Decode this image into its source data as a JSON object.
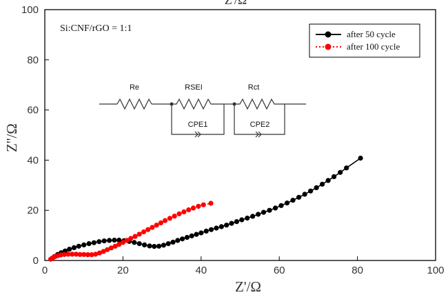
{
  "chart_data": {
    "type": "scatter",
    "top_title_fragment": "Z'/Ω",
    "xlabel": "Z'/Ω",
    "ylabel": "Z''/Ω",
    "xlim": [
      0,
      100
    ],
    "ylim": [
      0,
      100
    ],
    "x_ticks": [
      "0",
      "20",
      "40",
      "60",
      "80",
      "100"
    ],
    "y_ticks": [
      "0",
      "20",
      "40",
      "60",
      "80",
      "100"
    ],
    "grid": false,
    "legend_position": "top-right",
    "annotation": "Si:CNF/rGO = 1:1",
    "circuit": {
      "resistors": [
        "Re",
        "RSEI",
        "Rct"
      ],
      "cpes": [
        "CPE1",
        "CPE2"
      ]
    },
    "series": [
      {
        "name": "after 50 cycle",
        "color": "#000000",
        "line_style": "solid",
        "points": [
          [
            1.8,
            0.8
          ],
          [
            2.5,
            1.6
          ],
          [
            3.3,
            2.4
          ],
          [
            4.2,
            3.1
          ],
          [
            5.2,
            3.8
          ],
          [
            6.3,
            4.5
          ],
          [
            7.5,
            5.1
          ],
          [
            8.7,
            5.7
          ],
          [
            10.0,
            6.2
          ],
          [
            11.3,
            6.7
          ],
          [
            12.6,
            7.1
          ],
          [
            13.9,
            7.5
          ],
          [
            15.2,
            7.8
          ],
          [
            16.5,
            8.0
          ],
          [
            17.8,
            8.1
          ],
          [
            19.0,
            8.1
          ],
          [
            20.3,
            7.9
          ],
          [
            21.6,
            7.6
          ],
          [
            22.9,
            7.2
          ],
          [
            24.2,
            6.7
          ],
          [
            25.5,
            6.2
          ],
          [
            26.8,
            5.8
          ],
          [
            28.0,
            5.6
          ],
          [
            29.2,
            5.7
          ],
          [
            30.4,
            6.1
          ],
          [
            31.6,
            6.7
          ],
          [
            32.8,
            7.3
          ],
          [
            34.0,
            8.0
          ],
          [
            35.2,
            8.6
          ],
          [
            36.4,
            9.2
          ],
          [
            37.6,
            9.8
          ],
          [
            38.8,
            10.4
          ],
          [
            40.0,
            11.0
          ],
          [
            41.3,
            11.7
          ],
          [
            42.6,
            12.3
          ],
          [
            43.9,
            12.9
          ],
          [
            45.2,
            13.5
          ],
          [
            46.5,
            14.1
          ],
          [
            47.8,
            14.8
          ],
          [
            49.1,
            15.5
          ],
          [
            50.4,
            16.2
          ],
          [
            51.8,
            16.9
          ],
          [
            53.2,
            17.6
          ],
          [
            54.6,
            18.4
          ],
          [
            56.0,
            19.2
          ],
          [
            57.5,
            20.0
          ],
          [
            59.0,
            20.9
          ],
          [
            60.5,
            21.9
          ],
          [
            62.0,
            22.9
          ],
          [
            63.5,
            24.0
          ],
          [
            65.0,
            25.2
          ],
          [
            66.5,
            26.4
          ],
          [
            68.0,
            27.7
          ],
          [
            69.5,
            29.0
          ],
          [
            71.0,
            30.4
          ],
          [
            72.5,
            31.9
          ],
          [
            74.0,
            33.4
          ],
          [
            75.6,
            35.1
          ],
          [
            77.2,
            36.9
          ],
          [
            80.8,
            40.8
          ]
        ]
      },
      {
        "name": "after 100 cycle",
        "color": "#ff0000",
        "line_style": "dotted",
        "points": [
          [
            1.5,
            0.5
          ],
          [
            2.0,
            1.0
          ],
          [
            2.6,
            1.5
          ],
          [
            3.3,
            1.9
          ],
          [
            4.1,
            2.2
          ],
          [
            5.0,
            2.4
          ],
          [
            6.0,
            2.5
          ],
          [
            7.0,
            2.5
          ],
          [
            8.0,
            2.5
          ],
          [
            9.0,
            2.4
          ],
          [
            10.0,
            2.4
          ],
          [
            11.0,
            2.3
          ],
          [
            12.0,
            2.3
          ],
          [
            13.0,
            2.5
          ],
          [
            14.0,
            3.0
          ],
          [
            15.0,
            3.6
          ],
          [
            16.0,
            4.3
          ],
          [
            17.0,
            5.0
          ],
          [
            18.0,
            5.7
          ],
          [
            19.0,
            6.4
          ],
          [
            20.0,
            7.2
          ],
          [
            21.0,
            8.0
          ],
          [
            22.0,
            8.8
          ],
          [
            23.1,
            9.6
          ],
          [
            24.2,
            10.5
          ],
          [
            25.3,
            11.4
          ],
          [
            26.4,
            12.3
          ],
          [
            27.5,
            13.2
          ],
          [
            28.6,
            14.1
          ],
          [
            29.7,
            15.0
          ],
          [
            30.8,
            15.9
          ],
          [
            32.0,
            16.8
          ],
          [
            33.2,
            17.7
          ],
          [
            34.4,
            18.6
          ],
          [
            35.6,
            19.4
          ],
          [
            36.8,
            20.2
          ],
          [
            38.0,
            20.9
          ],
          [
            39.3,
            21.6
          ],
          [
            40.6,
            22.2
          ],
          [
            42.5,
            22.8
          ]
        ]
      }
    ]
  }
}
